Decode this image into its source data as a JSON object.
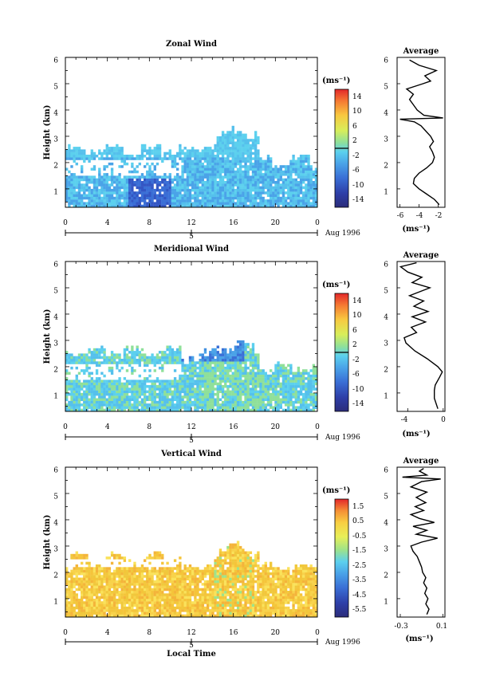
{
  "chart_data": [
    {
      "type": "heatmap",
      "title": "Zonal Wind",
      "ylabel": "Height (km)",
      "xlabel": "",
      "x_ticks": [
        "0",
        "4",
        "8",
        "12",
        "16",
        "20",
        "0"
      ],
      "y_ticks": [
        "1",
        "2",
        "3",
        "4",
        "5",
        "6"
      ],
      "xlim": [
        0,
        24
      ],
      "ylim": [
        0.3,
        6
      ],
      "date_ticks": [
        "5"
      ],
      "date_label": "Aug 1996",
      "colorbar": {
        "unit": "(ms⁻¹)",
        "ticks": [
          "14",
          "10",
          "6",
          "2",
          "-2",
          "-6",
          "-10",
          "-14"
        ],
        "range": [
          -16,
          16
        ]
      },
      "data_top": {
        "early": 2.6,
        "mid": 2.6,
        "peak": 3.5,
        "late": 2.2
      },
      "profile": {
        "title": "Average",
        "xlabel": "(ms⁻¹)",
        "x_ticks": [
          "-6",
          "-4",
          "-2"
        ],
        "y_ticks": [
          "1",
          "2",
          "3",
          "4",
          "5",
          "6"
        ],
        "xlim": [
          -6.3,
          -1.3
        ],
        "ylim": [
          0.3,
          6
        ],
        "points": [
          [
            -1.9,
            0.4
          ],
          [
            -2.4,
            0.6
          ],
          [
            -3.2,
            0.8
          ],
          [
            -4.0,
            1.0
          ],
          [
            -4.6,
            1.2
          ],
          [
            -4.5,
            1.4
          ],
          [
            -4.0,
            1.6
          ],
          [
            -3.2,
            1.8
          ],
          [
            -2.6,
            2.0
          ],
          [
            -2.4,
            2.2
          ],
          [
            -2.6,
            2.4
          ],
          [
            -2.9,
            2.6
          ],
          [
            -2.5,
            2.8
          ],
          [
            -2.8,
            3.0
          ],
          [
            -3.3,
            3.2
          ],
          [
            -3.8,
            3.4
          ],
          [
            -4.5,
            3.55
          ],
          [
            -6.0,
            3.65
          ],
          [
            -1.5,
            3.7
          ],
          [
            -3.5,
            3.8
          ],
          [
            -4.2,
            4.0
          ],
          [
            -4.6,
            4.2
          ],
          [
            -5.0,
            4.4
          ],
          [
            -4.6,
            4.6
          ],
          [
            -5.3,
            4.8
          ],
          [
            -3.6,
            5.0
          ],
          [
            -2.8,
            5.1
          ],
          [
            -3.4,
            5.3
          ],
          [
            -2.2,
            5.5
          ],
          [
            -4.0,
            5.7
          ],
          [
            -5.0,
            5.9
          ]
        ]
      }
    },
    {
      "type": "heatmap",
      "title": "Meridional Wind",
      "ylabel": "Height (km)",
      "xlabel": "",
      "x_ticks": [
        "0",
        "4",
        "8",
        "12",
        "16",
        "20",
        "0"
      ],
      "y_ticks": [
        "1",
        "2",
        "3",
        "4",
        "5",
        "6"
      ],
      "xlim": [
        0,
        24
      ],
      "ylim": [
        0.3,
        6
      ],
      "date_ticks": [
        "5"
      ],
      "date_label": "Aug 1996",
      "colorbar": {
        "unit": "(ms⁻¹)",
        "ticks": [
          "14",
          "10",
          "6",
          "2",
          "-2",
          "-6",
          "-10",
          "-14"
        ],
        "range": [
          -16,
          16
        ]
      },
      "data_top": {
        "early": 2.7,
        "mid": 2.5,
        "peak": 3.0,
        "late": 2.1
      },
      "profile": {
        "title": "Average",
        "xlabel": "(ms⁻¹)",
        "x_ticks": [
          "-4",
          "0"
        ],
        "y_ticks": [
          "1",
          "2",
          "3",
          "4",
          "5",
          "6"
        ],
        "xlim": [
          -5.2,
          0.2
        ],
        "ylim": [
          0.3,
          6
        ],
        "points": [
          [
            -0.6,
            0.4
          ],
          [
            -1.0,
            0.8
          ],
          [
            -1.0,
            1.1
          ],
          [
            -0.9,
            1.3
          ],
          [
            -0.4,
            1.6
          ],
          [
            -0.1,
            1.8
          ],
          [
            -0.6,
            2.0
          ],
          [
            -1.8,
            2.3
          ],
          [
            -3.2,
            2.6
          ],
          [
            -4.2,
            2.9
          ],
          [
            -4.4,
            3.1
          ],
          [
            -3.0,
            3.3
          ],
          [
            -3.6,
            3.5
          ],
          [
            -2.0,
            3.7
          ],
          [
            -3.5,
            3.9
          ],
          [
            -1.7,
            4.1
          ],
          [
            -3.3,
            4.3
          ],
          [
            -2.2,
            4.5
          ],
          [
            -3.8,
            4.7
          ],
          [
            -1.5,
            5.0
          ],
          [
            -3.5,
            5.2
          ],
          [
            -2.4,
            5.4
          ],
          [
            -4.0,
            5.6
          ],
          [
            -4.8,
            5.8
          ],
          [
            -3.0,
            5.95
          ]
        ]
      }
    },
    {
      "type": "heatmap",
      "title": "Vertical Wind",
      "ylabel": "Height (km)",
      "xlabel": "Local Time",
      "x_ticks": [
        "0",
        "4",
        "8",
        "12",
        "16",
        "20",
        "0"
      ],
      "y_ticks": [
        "1",
        "2",
        "3",
        "4",
        "5",
        "6"
      ],
      "xlim": [
        0,
        24
      ],
      "ylim": [
        0.3,
        6
      ],
      "date_ticks": [
        "5"
      ],
      "date_label": "Aug 1996",
      "colorbar": {
        "unit": "(ms⁻¹)",
        "ticks": [
          "1.5",
          "0.5",
          "-0.5",
          "-1.5",
          "-2.5",
          "-3.5",
          "-4.5",
          "-5.5"
        ],
        "range": [
          -6,
          2
        ]
      },
      "data_top": {
        "early": 2.7,
        "mid": 2.2,
        "peak": 3.2,
        "late": 2.3
      },
      "profile": {
        "title": "Average",
        "xlabel": "(ms⁻¹)",
        "x_ticks": [
          "-0.3",
          "0.1"
        ],
        "y_ticks": [
          "1",
          "2",
          "3",
          "4",
          "5",
          "6"
        ],
        "xlim": [
          -0.33,
          0.12
        ],
        "ylim": [
          0.3,
          6
        ],
        "points": [
          [
            -0.05,
            0.4
          ],
          [
            -0.03,
            0.6
          ],
          [
            -0.06,
            0.8
          ],
          [
            -0.04,
            1.0
          ],
          [
            -0.07,
            1.2
          ],
          [
            -0.05,
            1.4
          ],
          [
            -0.08,
            1.6
          ],
          [
            -0.06,
            1.8
          ],
          [
            -0.09,
            2.0
          ],
          [
            -0.1,
            2.2
          ],
          [
            -0.12,
            2.4
          ],
          [
            -0.14,
            2.6
          ],
          [
            -0.18,
            2.8
          ],
          [
            -0.2,
            3.0
          ],
          [
            -0.1,
            3.15
          ],
          [
            0.05,
            3.3
          ],
          [
            -0.15,
            3.45
          ],
          [
            -0.05,
            3.6
          ],
          [
            -0.18,
            3.75
          ],
          [
            0.02,
            3.9
          ],
          [
            -0.12,
            4.05
          ],
          [
            -0.2,
            4.2
          ],
          [
            -0.08,
            4.35
          ],
          [
            -0.16,
            4.5
          ],
          [
            -0.06,
            4.65
          ],
          [
            -0.15,
            4.85
          ],
          [
            -0.05,
            5.05
          ],
          [
            -0.2,
            5.25
          ],
          [
            -0.1,
            5.45
          ],
          [
            0.08,
            5.55
          ],
          [
            -0.28,
            5.62
          ],
          [
            -0.05,
            5.7
          ],
          [
            -0.12,
            5.85
          ],
          [
            -0.08,
            5.95
          ]
        ]
      }
    }
  ]
}
